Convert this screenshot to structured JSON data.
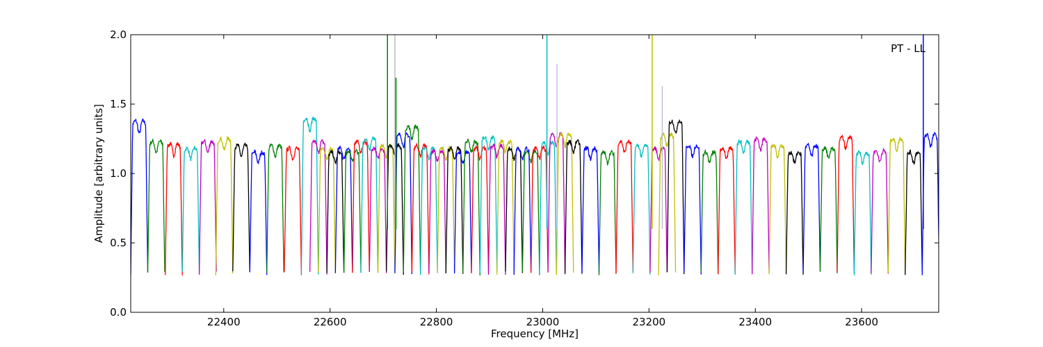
{
  "chart_data": {
    "type": "line",
    "title": "",
    "annotation": "PT - LL",
    "xlabel": "Frequency [MHz]",
    "ylabel": "Amplitude [arbitrary units]",
    "xlim": [
      22225,
      23745
    ],
    "ylim": [
      0.0,
      2.0
    ],
    "xticks": [
      22400,
      22600,
      22800,
      23000,
      23200,
      23400,
      23600
    ],
    "xtick_labels": [
      "22400",
      "22600",
      "22800",
      "23000",
      "23200",
      "23400",
      "23600"
    ],
    "yticks": [
      0.0,
      0.5,
      1.0,
      1.5,
      2.0
    ],
    "ytick_labels": [
      "0.0",
      "0.5",
      "1.0",
      "1.5",
      "2.0"
    ],
    "grid": false,
    "color_cycle": [
      "#0000ff",
      "#008000",
      "#ff0000",
      "#00bfbf",
      "#bf00bf",
      "#bfbf00",
      "#000000"
    ],
    "band_width_mhz": 32,
    "band_starts": [
      22225,
      22257,
      22290,
      22322,
      22354,
      22385,
      22417,
      22449,
      22481,
      22514,
      22546,
      22562,
      22578,
      22594,
      22610,
      22626,
      22642,
      22658,
      22674,
      22690,
      22706,
      22722,
      22738,
      22754,
      22770,
      22786,
      22802,
      22818,
      22834,
      22850,
      22866,
      22882,
      22898,
      22914,
      22930,
      22946,
      22962,
      22978,
      22994,
      23010,
      23026,
      23042,
      23074,
      23106,
      23138,
      23170,
      23202,
      23218,
      23234,
      23266,
      23298,
      23330,
      23362,
      23394,
      23426,
      23458,
      23490,
      23522,
      23554,
      23586,
      23618,
      23650,
      23682,
      23714
    ],
    "band_levels": [
      1.4,
      1.25,
      1.23,
      1.2,
      1.25,
      1.27,
      1.22,
      1.17,
      1.22,
      1.2,
      1.42,
      1.25,
      1.2,
      1.17,
      1.2,
      1.18,
      1.25,
      1.27,
      1.2,
      1.22,
      1.22,
      1.3,
      1.36,
      1.22,
      1.2,
      1.18,
      1.2,
      1.2,
      1.17,
      1.25,
      1.2,
      1.28,
      1.22,
      1.25,
      1.2,
      1.2,
      1.18,
      1.2,
      1.24,
      1.3,
      1.3,
      1.25,
      1.2,
      1.17,
      1.25,
      1.22,
      1.2,
      1.3,
      1.4,
      1.22,
      1.17,
      1.2,
      1.25,
      1.27,
      1.22,
      1.17,
      1.22,
      1.2,
      1.28,
      1.17,
      1.18,
      1.27,
      1.17,
      1.3
    ],
    "band_floor": 0.28,
    "spikes": [
      {
        "x": 22708,
        "y": 2.0,
        "color": "#008000"
      },
      {
        "x": 22722,
        "y": 2.0,
        "color": "#bbbbbb"
      },
      {
        "x": 22724,
        "y": 1.69,
        "color": "#008000"
      },
      {
        "x": 23008,
        "y": 2.0,
        "color": "#00bfbf"
      },
      {
        "x": 23027,
        "y": 1.79,
        "color": "#c0c0d8"
      },
      {
        "x": 23206,
        "y": 2.0,
        "color": "#bfbf00"
      },
      {
        "x": 23225,
        "y": 1.63,
        "color": "#c0c0d0"
      },
      {
        "x": 23716,
        "y": 2.0,
        "color": "#0000ff"
      }
    ]
  }
}
